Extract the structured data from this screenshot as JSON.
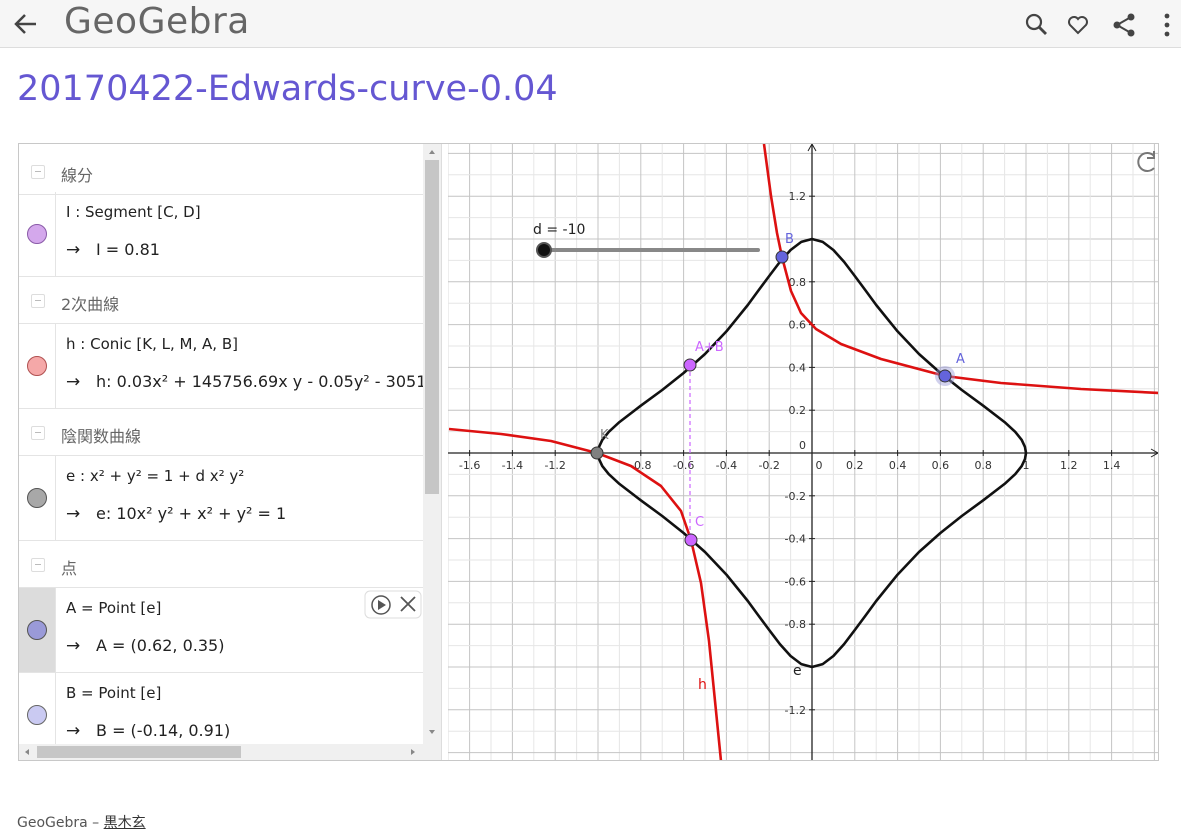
{
  "header": {
    "logo": "GeoGebra"
  },
  "title": "20170422-Edwards-curve-0.04",
  "algebra": {
    "sections": [
      {
        "heading": "線分",
        "items": [
          {
            "definition": "I : Segment [C, D]",
            "value": "I = 0.81"
          }
        ]
      },
      {
        "heading": "2次曲線",
        "items": [
          {
            "definition": "h : Conic [K, L, M, A, B]",
            "value": "h: 0.03x² + 145756.69x y - 0.05y² - 3051"
          }
        ]
      },
      {
        "heading": "陰関数曲線",
        "items": [
          {
            "definition": "e : x² + y² = 1 + d x² y²",
            "value": "e: 10x² y² + x² + y² = 1"
          }
        ]
      },
      {
        "heading": "点",
        "items": [
          {
            "definition": "A = Point [e]",
            "value": "A = (0.62, 0.35)"
          },
          {
            "definition": "B = Point [e]",
            "value": "B = (-0.14, 0.91)"
          }
        ]
      }
    ]
  },
  "graphics": {
    "slider": "d = -10",
    "x_ticks": [
      "-1.6",
      "-1.4",
      "-1.2",
      "-0.8",
      "-0.6",
      "-0.4",
      "-0.2",
      "0",
      "0.2",
      "0.4",
      "0.6",
      "0.8",
      "1",
      "1.2",
      "1.4"
    ],
    "y_ticks": [
      "1.2",
      "0.8",
      "0.6",
      "0.4",
      "0.2",
      "0",
      "-0.2",
      "-0.4",
      "-0.6",
      "-0.8",
      "-1.2"
    ],
    "point_labels": [
      "A",
      "B",
      "C",
      "A+B",
      "K"
    ],
    "curve_labels": [
      "h",
      "e"
    ]
  },
  "footer": {
    "brand": "GeoGebra",
    "separator": "–",
    "author": "黒木玄"
  }
}
